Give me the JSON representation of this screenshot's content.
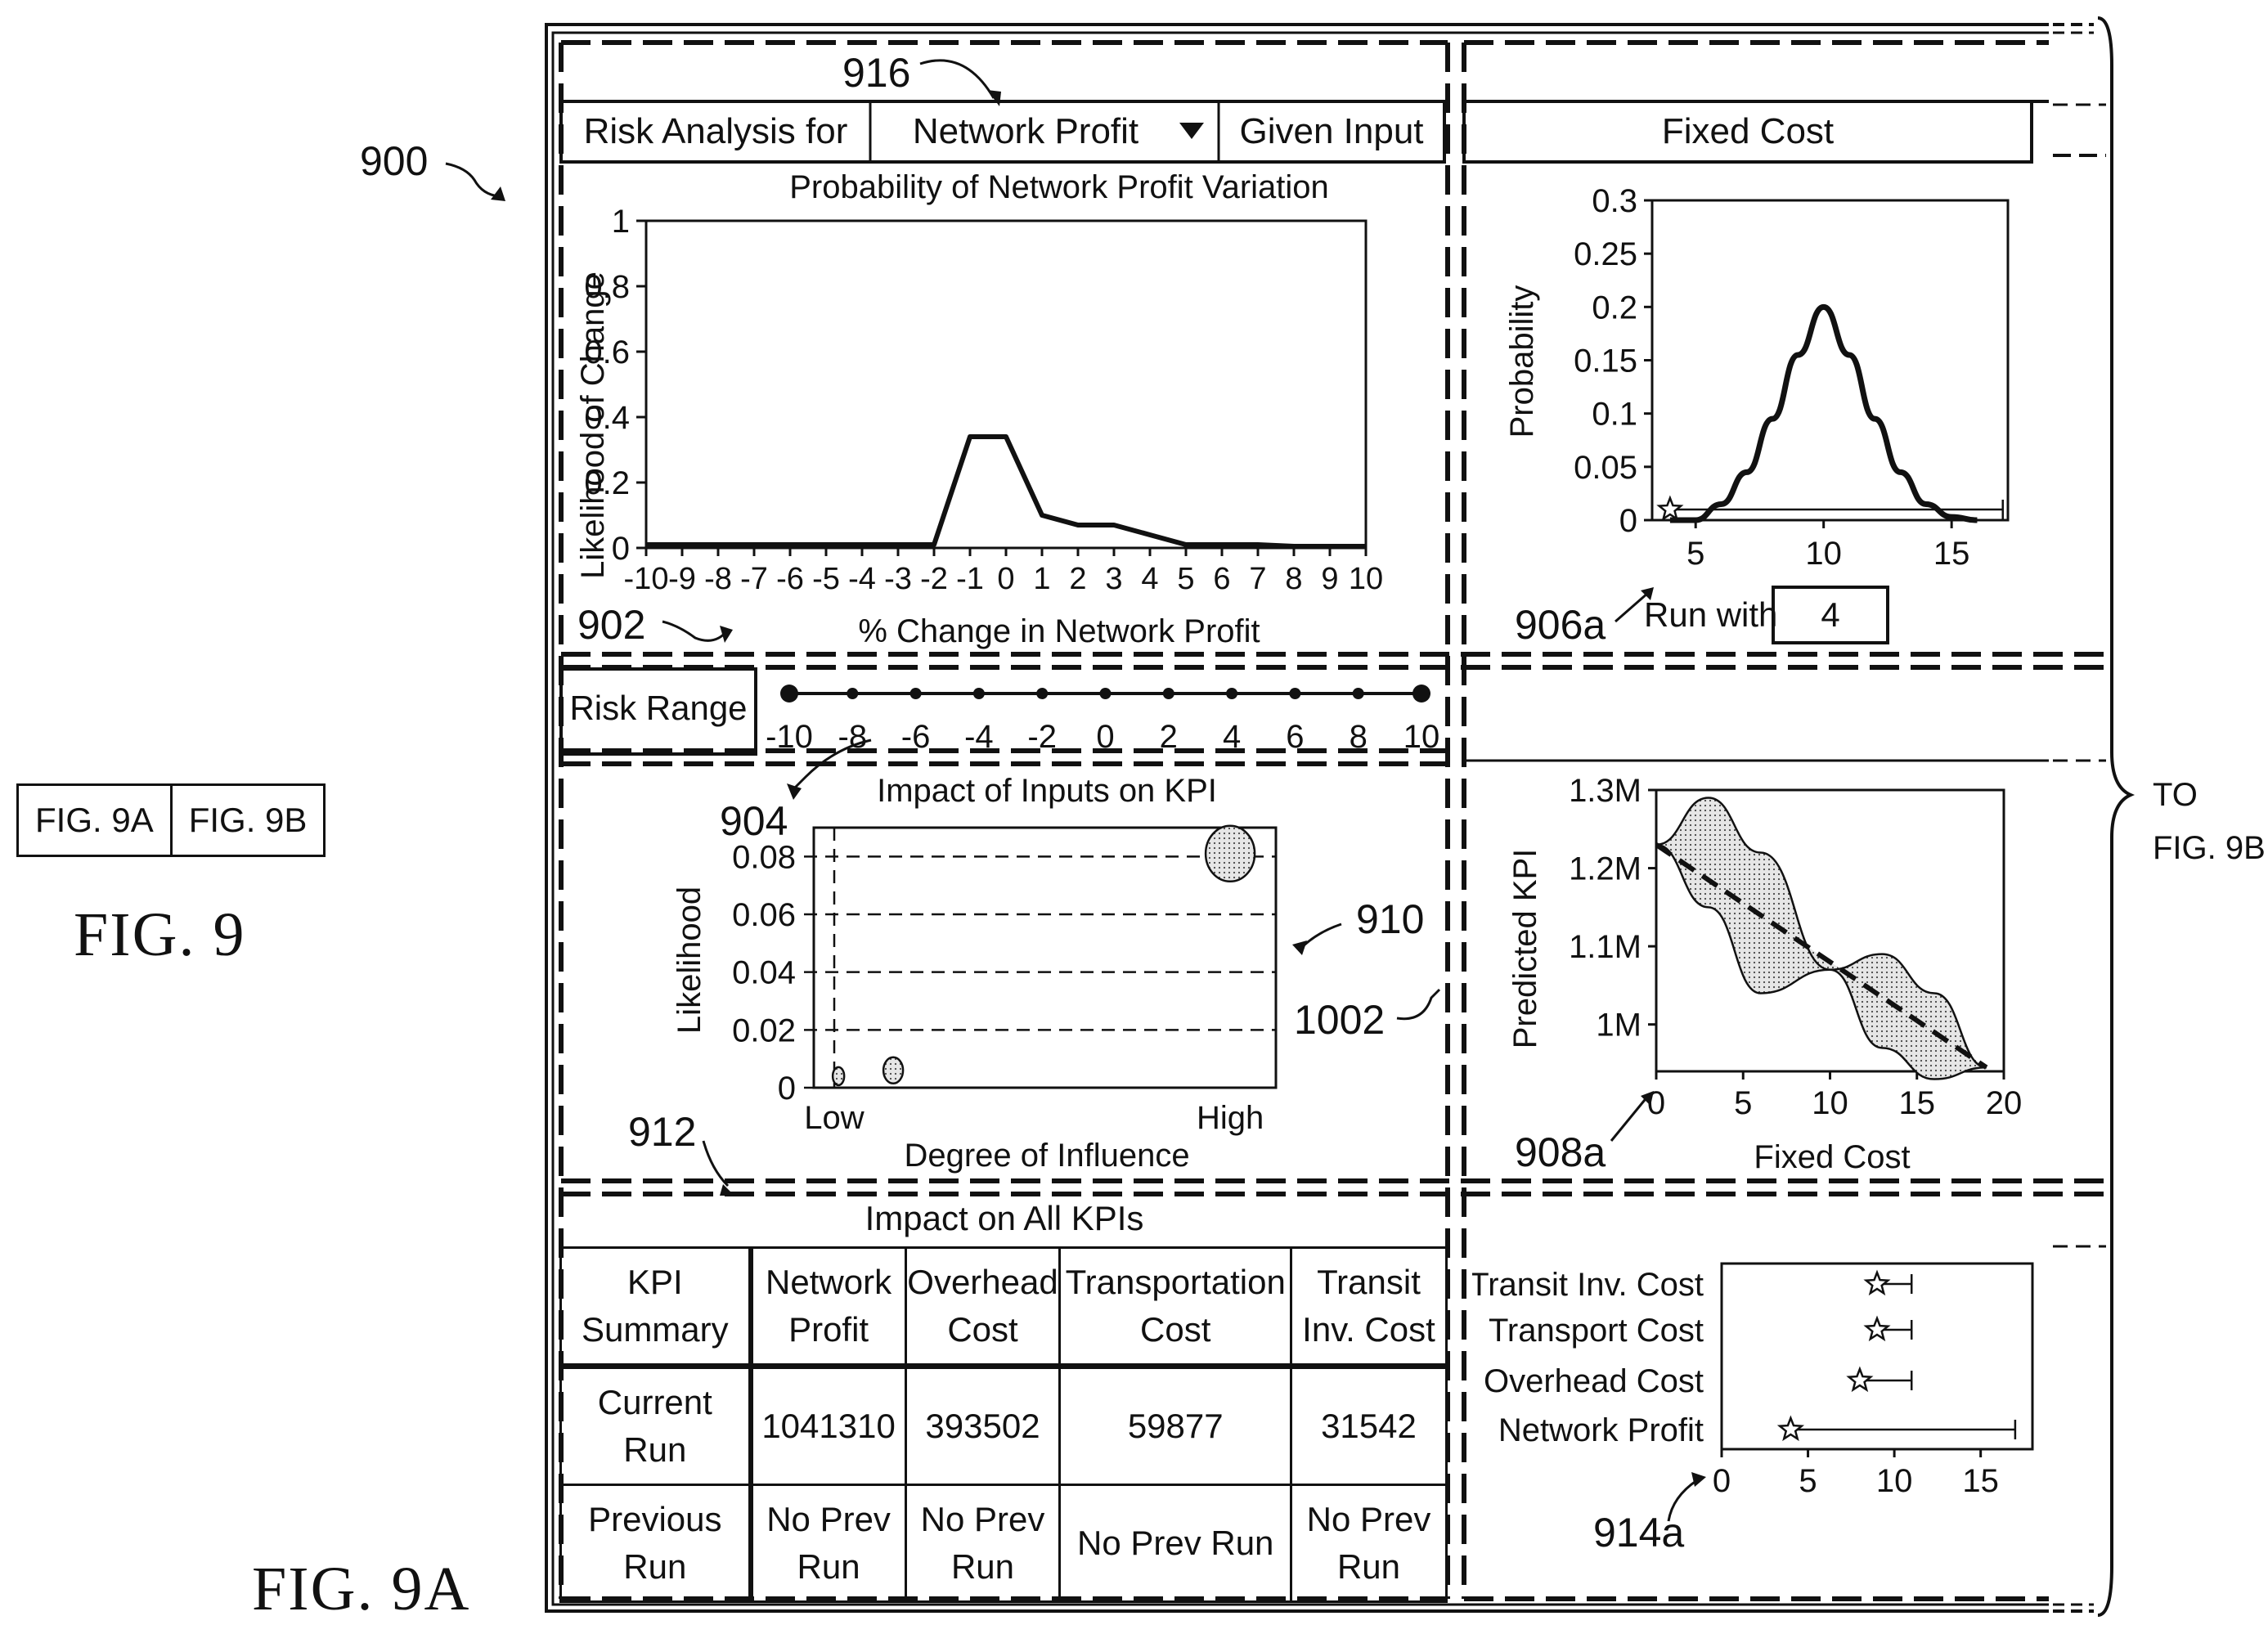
{
  "figure_labels": {
    "fig9": "FIG. 9",
    "fig9a": "FIG. 9A"
  },
  "fig_key": {
    "left": "FIG. 9A",
    "right": "FIG. 9B"
  },
  "continuation": {
    "line1": "TO",
    "line2": "FIG. 9B"
  },
  "refs": {
    "r900": "900",
    "r916": "916",
    "r902": "902",
    "r904": "904",
    "r910": "910",
    "r1002": "1002",
    "r912": "912",
    "r906a": "906a",
    "r908a": "908a",
    "r914a": "914a"
  },
  "header": {
    "risk_label": "Risk Analysis for",
    "kpi_select": "Network Profit",
    "given_label": "Given Input",
    "input_value": "Fixed Cost"
  },
  "run_control": {
    "label": "Run with",
    "value": "4"
  },
  "risk_range": {
    "label": "Risk Range",
    "ticks": [
      "-10",
      "-8",
      "-6",
      "-4",
      "-2",
      "0",
      "2",
      "4",
      "6",
      "8",
      "10"
    ]
  },
  "chart_data": [
    {
      "type": "line",
      "title": "Probability of Network Profit Variation",
      "xlabel": "% Change in Network Profit",
      "ylabel": "Likelihood of Change",
      "x": [
        -10,
        -9,
        -8,
        -7,
        -6,
        -5,
        -4,
        -3,
        -2,
        -1,
        0,
        1,
        2,
        3,
        4,
        5,
        6,
        7,
        8,
        9,
        10
      ],
      "y": [
        0.01,
        0.01,
        0.01,
        0.01,
        0.01,
        0.01,
        0.01,
        0.01,
        0.01,
        0.34,
        0.34,
        0.1,
        0.07,
        0.07,
        0.04,
        0.01,
        0.01,
        0.01,
        0.005,
        0.005,
        0.005
      ],
      "xlim": [
        -10,
        10
      ],
      "ylim": [
        0,
        1
      ],
      "yticks": [
        "0",
        "0.2",
        "0.4",
        "0.6",
        "0.8",
        "1"
      ]
    },
    {
      "type": "line",
      "xlabel": "",
      "ylabel": "Probability",
      "x": [
        4,
        5,
        6,
        7,
        8,
        9,
        10,
        11,
        12,
        13,
        14,
        15,
        16
      ],
      "y": [
        0,
        0,
        0.015,
        0.045,
        0.095,
        0.155,
        0.2,
        0.155,
        0.095,
        0.045,
        0.015,
        0.003,
        0
      ],
      "xlim": [
        3.3,
        17.2
      ],
      "ylim": [
        0,
        0.3
      ],
      "xticks": [
        "5",
        "10",
        "15"
      ],
      "yticks": [
        "0",
        "0.05",
        "0.1",
        "0.15",
        "0.2",
        "0.25",
        "0.3"
      ],
      "marker": {
        "shape": "star",
        "x": 4,
        "y": 0.01
      },
      "range_bar": [
        4,
        17
      ]
    },
    {
      "type": "scatter",
      "title": "Impact of Inputs on KPI",
      "xlabel": "Degree of Influence",
      "ylabel": "Likelihood",
      "xticks": [
        "Low",
        "High"
      ],
      "yticks": [
        "0",
        "0.02",
        "0.04",
        "0.06",
        "0.08"
      ],
      "ylim": [
        0,
        0.09
      ],
      "points": [
        {
          "x": 0.01,
          "y": 0.004
        },
        {
          "x": 0.14,
          "y": 0.006
        },
        {
          "x": 0.94,
          "y": 0.081
        }
      ]
    },
    {
      "type": "line",
      "xlabel": "Fixed Cost",
      "ylabel": "Predicted KPI",
      "xlim": [
        0,
        20
      ],
      "ylim": [
        0.94,
        1.3
      ],
      "xticks": [
        "0",
        "5",
        "10",
        "15",
        "20"
      ],
      "yticks": [
        "1M",
        "1.1M",
        "1.2M",
        "1.3M"
      ],
      "series": [
        {
          "x": [
            0,
            19
          ],
          "y": [
            1.23,
            0.945
          ]
        }
      ],
      "band_upper": {
        "x": [
          0,
          3,
          6,
          10,
          13,
          16,
          19
        ],
        "y": [
          1.23,
          1.29,
          1.22,
          1.07,
          1.09,
          1.04,
          0.945
        ]
      },
      "band_lower": {
        "x": [
          0,
          3,
          6,
          10,
          13,
          16,
          19
        ],
        "y": [
          1.23,
          1.15,
          1.04,
          1.07,
          0.97,
          0.93,
          0.945
        ]
      }
    },
    {
      "type": "scatter",
      "categories": [
        "Transit Inv. Cost",
        "Transport Cost",
        "Overhead Cost",
        "Network Profit"
      ],
      "xlim": [
        0,
        18
      ],
      "xticks": [
        "0",
        "5",
        "10",
        "15"
      ],
      "points": [
        {
          "category": "Transit Inv. Cost",
          "x": 9,
          "range": [
            9,
            11
          ]
        },
        {
          "category": "Transport Cost",
          "x": 9,
          "range": [
            9,
            11
          ]
        },
        {
          "category": "Overhead Cost",
          "x": 8,
          "range": [
            8,
            11
          ]
        },
        {
          "category": "Network Profit",
          "x": 4,
          "range": [
            4,
            17
          ]
        }
      ]
    }
  ],
  "kpi_table": {
    "title": "Impact on All KPIs",
    "columns": [
      "KPI Summary",
      "Network Profit",
      "Overhead Cost",
      "Transportation Cost",
      "Transit Inv. Cost"
    ],
    "rows": [
      [
        "Current Run",
        "1041310",
        "393502",
        "59877",
        "31542"
      ],
      [
        "Previous Run",
        "No Prev Run",
        "No Prev Run",
        "No Prev Run",
        "No Prev Run"
      ]
    ]
  }
}
